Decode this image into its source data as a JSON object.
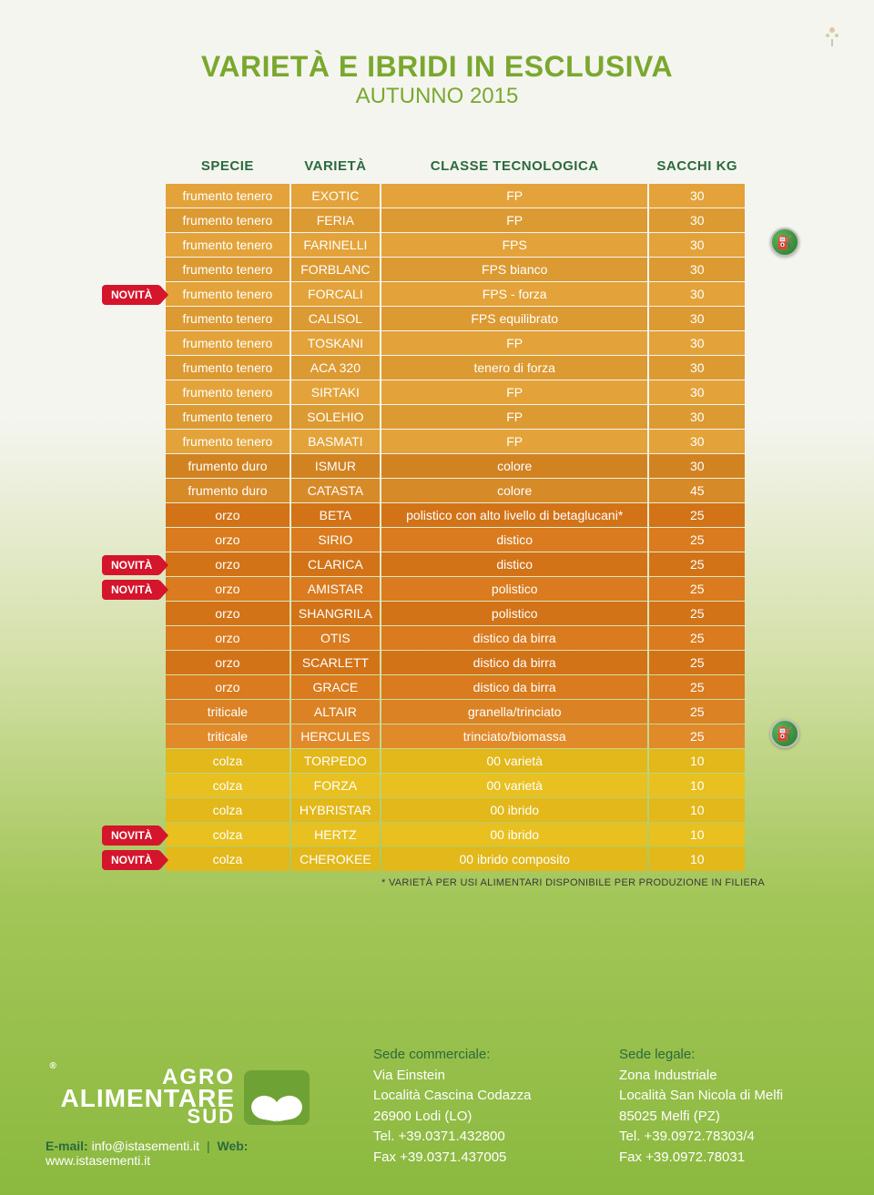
{
  "title": "VARIETÀ E IBRIDI IN ESCLUSIVA",
  "subtitle": "AUTUNNO 2015",
  "novita_label": "NOVITÀ",
  "columns": [
    "SPECIE",
    "VARIETÀ",
    "CLASSE TECNOLOGICA",
    "SACCHI KG"
  ],
  "groups": {
    "frumento_tenero": {
      "colors": [
        "#e3a33a",
        "#dc9a32"
      ]
    },
    "frumento_duro": {
      "colors": [
        "#d78a28",
        "#d18322"
      ]
    },
    "orzo": {
      "colors": [
        "#d97b1e",
        "#d27318"
      ]
    },
    "triticale": {
      "colors": [
        "#e08a2a",
        "#da8224"
      ]
    },
    "colza": {
      "colors": [
        "#e8c020",
        "#e2b81a"
      ]
    }
  },
  "rows": [
    {
      "specie": "frumento tenero",
      "varieta": "EXOTIC",
      "classe": "FP",
      "sacchi": "30",
      "g": "frumento_tenero"
    },
    {
      "specie": "frumento tenero",
      "varieta": "FERIA",
      "classe": "FP",
      "sacchi": "30",
      "g": "frumento_tenero",
      "icon": true
    },
    {
      "specie": "frumento tenero",
      "varieta": "FARINELLI",
      "classe": "FPS",
      "sacchi": "30",
      "g": "frumento_tenero"
    },
    {
      "specie": "frumento tenero",
      "varieta": "FORBLANC",
      "classe": "FPS bianco",
      "sacchi": "30",
      "g": "frumento_tenero"
    },
    {
      "specie": "frumento tenero",
      "varieta": "FORCALI",
      "classe": "FPS - forza",
      "sacchi": "30",
      "g": "frumento_tenero",
      "novita": true
    },
    {
      "specie": "frumento tenero",
      "varieta": "CALISOL",
      "classe": "FPS equilibrato",
      "sacchi": "30",
      "g": "frumento_tenero"
    },
    {
      "specie": "frumento tenero",
      "varieta": "TOSKANI",
      "classe": "FP",
      "sacchi": "30",
      "g": "frumento_tenero"
    },
    {
      "specie": "frumento tenero",
      "varieta": "ACA 320",
      "classe": "tenero di forza",
      "sacchi": "30",
      "g": "frumento_tenero"
    },
    {
      "specie": "frumento tenero",
      "varieta": "SIRTAKI",
      "classe": "FP",
      "sacchi": "30",
      "g": "frumento_tenero"
    },
    {
      "specie": "frumento tenero",
      "varieta": "SOLEHIO",
      "classe": "FP",
      "sacchi": "30",
      "g": "frumento_tenero"
    },
    {
      "specie": "frumento tenero",
      "varieta": "BASMATI",
      "classe": "FP",
      "sacchi": "30",
      "g": "frumento_tenero"
    },
    {
      "specie": "frumento duro",
      "varieta": "ISMUR",
      "classe": "colore",
      "sacchi": "30",
      "g": "frumento_duro"
    },
    {
      "specie": "frumento duro",
      "varieta": "CATASTA",
      "classe": "colore",
      "sacchi": "45",
      "g": "frumento_duro"
    },
    {
      "specie": "orzo",
      "varieta": "BETA",
      "classe": "polistico con alto livello di betaglucani*",
      "sacchi": "25",
      "g": "orzo"
    },
    {
      "specie": "orzo",
      "varieta": "SIRIO",
      "classe": "distico",
      "sacchi": "25",
      "g": "orzo"
    },
    {
      "specie": "orzo",
      "varieta": "CLARICA",
      "classe": "distico",
      "sacchi": "25",
      "g": "orzo",
      "novita": true
    },
    {
      "specie": "orzo",
      "varieta": "AMISTAR",
      "classe": "polistico",
      "sacchi": "25",
      "g": "orzo",
      "novita": true
    },
    {
      "specie": "orzo",
      "varieta": "SHANGRILA",
      "classe": "polistico",
      "sacchi": "25",
      "g": "orzo"
    },
    {
      "specie": "orzo",
      "varieta": "OTIS",
      "classe": "distico da birra",
      "sacchi": "25",
      "g": "orzo"
    },
    {
      "specie": "orzo",
      "varieta": "SCARLETT",
      "classe": "distico da birra",
      "sacchi": "25",
      "g": "orzo"
    },
    {
      "specie": "orzo",
      "varieta": "GRACE",
      "classe": "distico da birra",
      "sacchi": "25",
      "g": "orzo"
    },
    {
      "specie": "triticale",
      "varieta": "ALTAIR",
      "classe": "granella/trinciato",
      "sacchi": "25",
      "g": "triticale",
      "icon": true
    },
    {
      "specie": "triticale",
      "varieta": "HERCULES",
      "classe": "trinciato/biomassa",
      "sacchi": "25",
      "g": "triticale"
    },
    {
      "specie": "colza",
      "varieta": "TORPEDO",
      "classe": "00 varietà",
      "sacchi": "10",
      "g": "colza"
    },
    {
      "specie": "colza",
      "varieta": "FORZA",
      "classe": "00 varietà",
      "sacchi": "10",
      "g": "colza"
    },
    {
      "specie": "colza",
      "varieta": "HYBRISTAR",
      "classe": "00 ibrido",
      "sacchi": "10",
      "g": "colza"
    },
    {
      "specie": "colza",
      "varieta": "HERTZ",
      "classe": "00 ibrido",
      "sacchi": "10",
      "g": "colza",
      "novita": true
    },
    {
      "specie": "colza",
      "varieta": "CHEROKEE",
      "classe": "00 ibrido composito",
      "sacchi": "10",
      "g": "colza",
      "novita": true
    }
  ],
  "footnote": "* VARIETÀ PER USI ALIMENTARI DISPONIBILE PER PRODUZIONE IN FILIERA",
  "footer": {
    "logo": {
      "l1": "AGRO",
      "l2": "ALIMENTARE",
      "l3": "SUD"
    },
    "email_label": "E-mail:",
    "email": "info@istasementi.it",
    "sep": "|",
    "web_label": "Web:",
    "web": "www.istasementi.it",
    "commercial": {
      "heading": "Sede commerciale:",
      "lines": [
        "Via Einstein",
        "Località Cascina Codazza",
        "26900 Lodi (LO)",
        "Tel. +39.0371.432800",
        "Fax +39.0371.437005"
      ]
    },
    "legal": {
      "heading": "Sede legale:",
      "lines": [
        "Zona Industriale",
        "Località San Nicola di Melfi",
        "85025 Melfi (PZ)",
        "Tel. +39.0972.78303/4",
        "Fax +39.0972.78031"
      ]
    }
  }
}
